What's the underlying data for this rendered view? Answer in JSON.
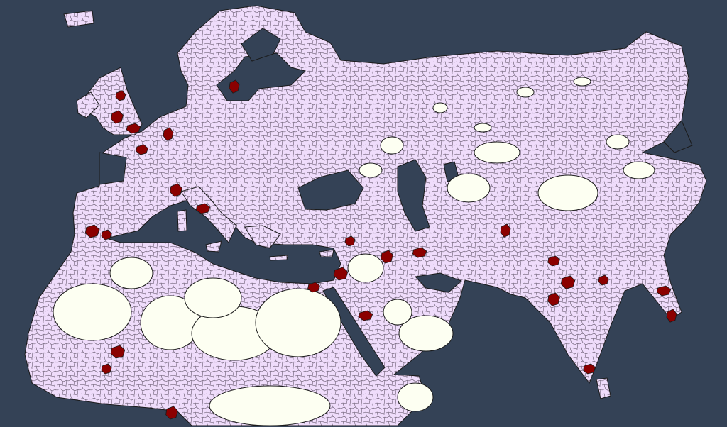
{
  "map": {
    "colors": {
      "sea": "#344256",
      "land": "#efdcfb",
      "wasteland": "#fdfff2",
      "highlighted_province": "#8b0000",
      "border": "#1a1a1a"
    },
    "layers": [
      "sea",
      "provinces",
      "wasteland",
      "highlighted-provinces"
    ]
  }
}
